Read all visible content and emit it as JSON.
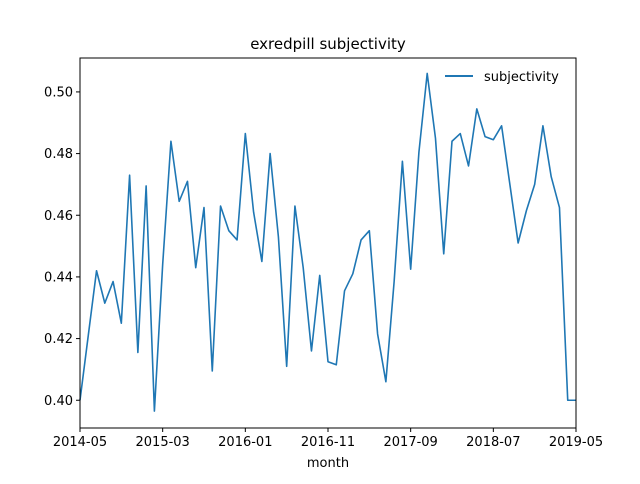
{
  "chart_data": {
    "type": "line",
    "title": "exredpill subjectivity",
    "xlabel": "month",
    "ylabel": "",
    "legend_position": "top-right",
    "grid": false,
    "xlim": [
      "2014-05",
      "2019-05"
    ],
    "ylim": [
      0.391,
      0.511
    ],
    "x_tick_labels": [
      "2014-05",
      "2015-03",
      "2016-01",
      "2016-11",
      "2017-09",
      "2018-07",
      "2019-05"
    ],
    "y_tick_labels": [
      "0.40",
      "0.42",
      "0.44",
      "0.46",
      "0.48",
      "0.50"
    ],
    "y_tick_values": [
      0.4,
      0.42,
      0.44,
      0.46,
      0.48,
      0.5
    ],
    "series": [
      {
        "name": "subjectivity",
        "color": "#1f77b4",
        "x": [
          "2014-05",
          "2014-06",
          "2014-07",
          "2014-08",
          "2014-09",
          "2014-10",
          "2014-11",
          "2014-12",
          "2015-01",
          "2015-02",
          "2015-03",
          "2015-04",
          "2015-05",
          "2015-06",
          "2015-07",
          "2015-08",
          "2015-09",
          "2015-10",
          "2015-11",
          "2015-12",
          "2016-01",
          "2016-02",
          "2016-03",
          "2016-04",
          "2016-05",
          "2016-06",
          "2016-07",
          "2016-08",
          "2016-09",
          "2016-10",
          "2016-11",
          "2016-12",
          "2017-01",
          "2017-02",
          "2017-03",
          "2017-04",
          "2017-05",
          "2017-06",
          "2017-07",
          "2017-08",
          "2017-09",
          "2017-10",
          "2017-11",
          "2017-12",
          "2018-01",
          "2018-02",
          "2018-03",
          "2018-04",
          "2018-05",
          "2018-06",
          "2018-07",
          "2018-08",
          "2018-09",
          "2018-10",
          "2018-11",
          "2018-12",
          "2019-01",
          "2019-02",
          "2019-03",
          "2019-04",
          "2019-05"
        ],
        "values": [
          0.4,
          0.421,
          0.442,
          0.4315,
          0.4385,
          0.425,
          0.473,
          0.4155,
          0.4695,
          0.3965,
          0.444,
          0.484,
          0.4645,
          0.471,
          0.443,
          0.4625,
          0.4095,
          0.463,
          0.455,
          0.452,
          0.4865,
          0.461,
          0.445,
          0.48,
          0.453,
          0.411,
          0.463,
          0.443,
          0.416,
          0.4405,
          0.4125,
          0.4115,
          0.4355,
          0.441,
          0.452,
          0.455,
          0.4215,
          0.406,
          0.4385,
          0.4775,
          0.4425,
          0.4805,
          0.506,
          0.485,
          0.4475,
          0.484,
          0.4865,
          0.476,
          0.4945,
          0.4855,
          0.4845,
          0.489,
          0.47,
          0.451,
          0.4615,
          0.47,
          0.489,
          0.4725,
          0.4625,
          0.4,
          0.4
        ]
      }
    ]
  }
}
